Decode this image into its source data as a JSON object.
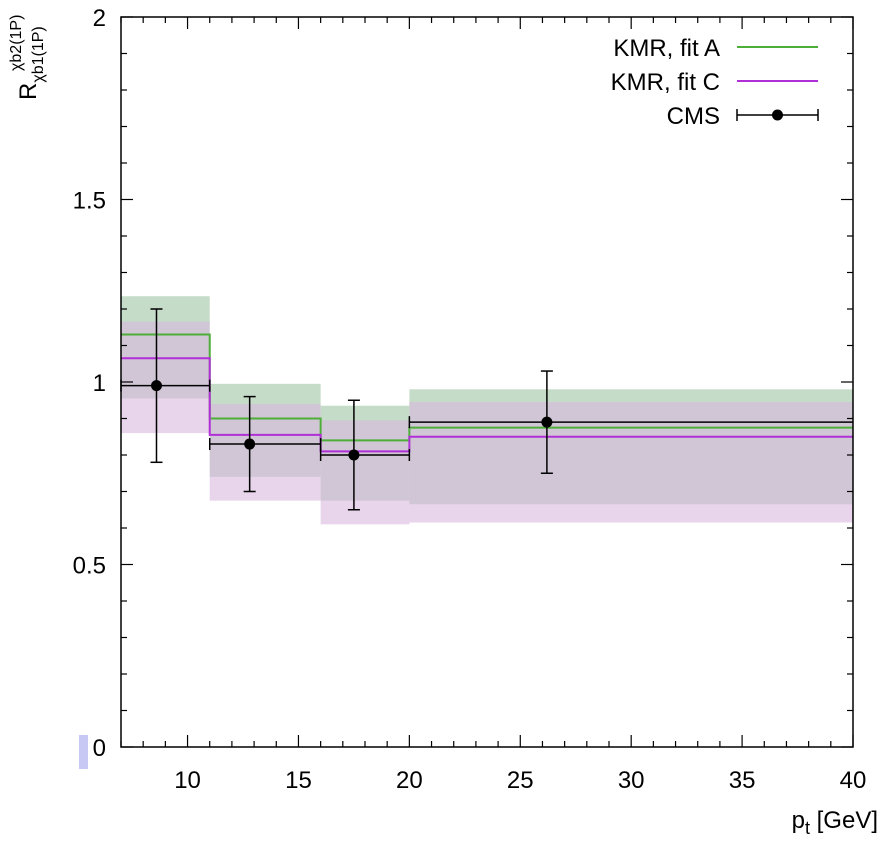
{
  "chart_data": {
    "type": "step",
    "title": "",
    "xlabel": {
      "main": "p",
      "sub": "t",
      "suffix": " [GeV]"
    },
    "ylabel": {
      "main": "R",
      "sup": "χb2(1P)",
      "sub": "χb1(1P)"
    },
    "xlim": [
      7,
      40
    ],
    "ylim": [
      0,
      2
    ],
    "xticks": [
      10,
      15,
      20,
      25,
      30,
      35,
      40
    ],
    "yticks": [
      0,
      0.5,
      1,
      1.5,
      2
    ],
    "ytick_labels": [
      "0",
      "0.5",
      "1",
      "1.5",
      "2"
    ],
    "legend_position": "top-right",
    "bins": [
      [
        7,
        11
      ],
      [
        11,
        16
      ],
      [
        16,
        20
      ],
      [
        20,
        40
      ]
    ],
    "series": [
      {
        "name": "KMR, fit A",
        "color": "#4daf3a",
        "band_color": "#c5dcc9",
        "values": [
          1.13,
          0.9,
          0.84,
          0.875
        ],
        "band_low": [
          0.955,
          0.74,
          0.675,
          0.665
        ],
        "band_high": [
          1.235,
          0.995,
          0.935,
          0.98
        ]
      },
      {
        "name": "KMR, fit C",
        "color": "#b02fd6",
        "band_color": "#d9b7de",
        "values": [
          1.065,
          0.855,
          0.81,
          0.85
        ],
        "band_low": [
          0.86,
          0.675,
          0.61,
          0.615
        ],
        "band_high": [
          1.165,
          0.94,
          0.895,
          0.945
        ]
      }
    ],
    "points": {
      "name": "CMS",
      "color": "#000000",
      "x": [
        8.6,
        12.8,
        17.5,
        26.2
      ],
      "y": [
        0.99,
        0.83,
        0.8,
        0.89
      ],
      "xerr_low": [
        7,
        11,
        16,
        20
      ],
      "xerr_high": [
        11,
        16,
        20,
        40
      ],
      "yerr_low": [
        0.78,
        0.7,
        0.65,
        0.75
      ],
      "yerr_high": [
        1.2,
        0.96,
        0.95,
        1.03
      ]
    }
  }
}
